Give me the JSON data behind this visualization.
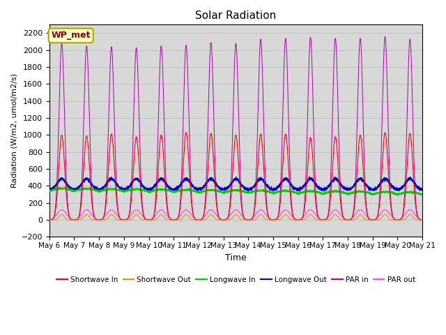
{
  "title": "Solar Radiation",
  "xlabel": "Time",
  "ylabel": "Radiation (W/m2, umol/m2/s)",
  "ylim": [
    -200,
    2300
  ],
  "yticks": [
    -200,
    0,
    200,
    400,
    600,
    800,
    1000,
    1200,
    1400,
    1600,
    1800,
    2000,
    2200
  ],
  "bg_color": "#d8d8d8",
  "fig_color": "#ffffff",
  "annotation_text": "WP_met",
  "annotation_color": "#8B0000",
  "annotation_bg": "#ffffcc",
  "n_days": 15,
  "start_day": 6,
  "colors": {
    "shortwave_in": "#ff0000",
    "shortwave_out": "#ff8800",
    "longwave_in": "#00cc00",
    "longwave_out": "#0000cc",
    "par_in": "#aa00aa",
    "par_out": "#ff44ff"
  },
  "legend_labels": [
    "Shortwave In",
    "Shortwave Out",
    "Longwave In",
    "Longwave Out",
    "PAR in",
    "PAR out"
  ]
}
